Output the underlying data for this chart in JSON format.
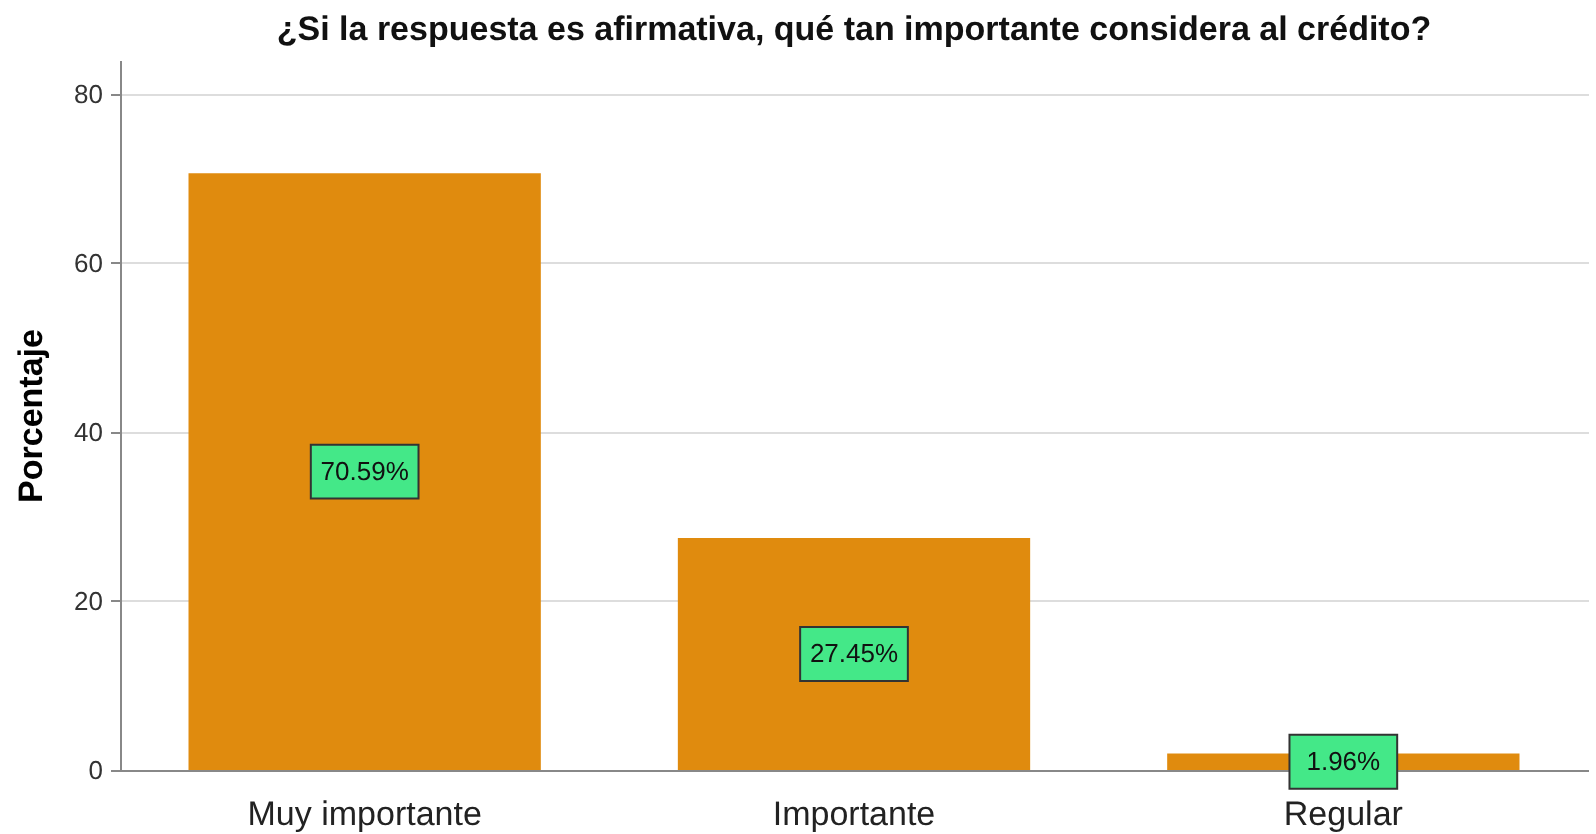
{
  "chart_data": {
    "type": "bar",
    "title": "¿Si la respuesta es afirmativa, qué tan importante considera al crédito?",
    "ylabel": "Porcentaje",
    "categories": [
      "Muy importante",
      "Importante",
      "Regular"
    ],
    "values": [
      70.59,
      27.45,
      1.96
    ],
    "value_labels": [
      "70.59%",
      "27.45%",
      "1.96%"
    ],
    "color": "#e08b0e",
    "ylim": [
      0,
      84
    ],
    "yticks": [
      0,
      20,
      40,
      60,
      80
    ],
    "grid": "y"
  }
}
